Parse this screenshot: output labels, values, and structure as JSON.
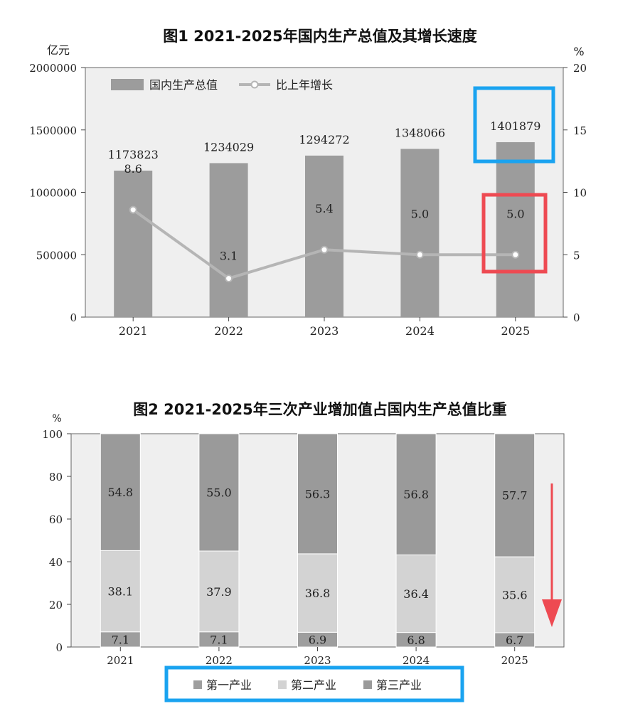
{
  "chart_data": [
    {
      "type": "bar",
      "title": "图1   2021-2025年国内生产总值及其增长速度",
      "ylabel": "亿元",
      "y2label": "%",
      "categories": [
        "2021",
        "2022",
        "2023",
        "2024",
        "2025"
      ],
      "ylim": [
        0,
        2000000
      ],
      "y2lim": [
        0,
        20
      ],
      "yticks": [
        "0",
        "500000",
        "1000000",
        "1500000",
        "2000000"
      ],
      "y2ticks": [
        "0",
        "5",
        "10",
        "15",
        "20"
      ],
      "series": [
        {
          "name": "国内生产总值",
          "type": "bar",
          "values": [
            1173823,
            1234029,
            1294272,
            1348066,
            1401879
          ],
          "labels": [
            "1173823",
            "1234029",
            "1294272",
            "1348066",
            "1401879"
          ]
        },
        {
          "name": "比上年增长",
          "type": "line",
          "axis": "right",
          "values": [
            8.6,
            3.1,
            5.4,
            5.0,
            5.0
          ],
          "labels": [
            "8.6",
            "3.1",
            "5.4",
            "5.0",
            "5.0"
          ]
        }
      ],
      "legend": "top-left",
      "grid": false,
      "background": "#efefef",
      "colors": {
        "bar": "#9c9c9c",
        "line": "#b5b5b5"
      }
    },
    {
      "type": "bar",
      "stacked": true,
      "title": "图2   2021-2025年三次产业增加值占国内生产总值比重",
      "ylabel": "%",
      "categories": [
        "2021",
        "2022",
        "2023",
        "2024",
        "2025"
      ],
      "ylim": [
        0,
        100
      ],
      "yticks": [
        "0",
        "20",
        "40",
        "60",
        "80",
        "100"
      ],
      "series": [
        {
          "name": "第一产业",
          "values": [
            7.1,
            7.1,
            6.9,
            6.8,
            6.7
          ],
          "labels": [
            "7.1",
            "7.1",
            "6.9",
            "6.8",
            "6.7"
          ]
        },
        {
          "name": "第二产业",
          "values": [
            38.1,
            37.9,
            36.8,
            36.4,
            35.6
          ],
          "labels": [
            "38.1",
            "37.9",
            "36.8",
            "36.4",
            "35.6"
          ]
        },
        {
          "name": "第三产业",
          "values": [
            54.8,
            55.0,
            56.3,
            56.8,
            57.7
          ],
          "labels": [
            "54.8",
            "55.0",
            "56.3",
            "56.8",
            "57.7"
          ]
        }
      ],
      "legend": "bottom-center",
      "grid": false,
      "background": "#efefef",
      "colors": {
        "第一产业": "#9e9e9e",
        "第二产业": "#d3d3d3",
        "第三产业": "#9a9a9a"
      }
    }
  ],
  "annotations": {
    "highlight_colors": {
      "blue": "#1aa3f0",
      "red": "#ee4a52"
    }
  }
}
